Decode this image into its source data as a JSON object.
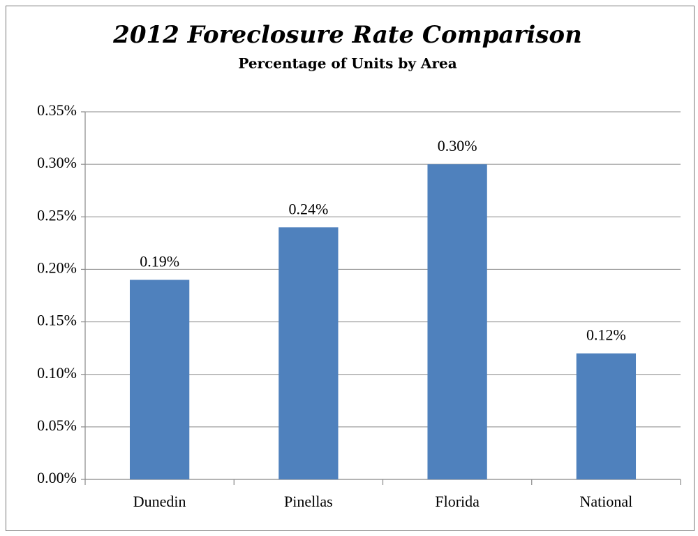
{
  "chart_data": {
    "type": "bar",
    "title": "2012 Foreclosure Rate Comparison",
    "subtitle": "Percentage of Units by Area",
    "categories": [
      "Dunedin",
      "Pinellas",
      "Florida",
      "National"
    ],
    "values": [
      0.19,
      0.24,
      0.3,
      0.12
    ],
    "value_labels": [
      "0.19%",
      "0.24%",
      "0.30%",
      "0.12%"
    ],
    "color": "#4f81bd",
    "ylim": [
      0,
      0.35
    ],
    "yticks": [
      {
        "value": 0,
        "label": "0.00%"
      },
      {
        "value": 0.05,
        "label": "0.05%"
      },
      {
        "value": 0.1,
        "label": "0.10%"
      },
      {
        "value": 0.15,
        "label": "0.15%"
      },
      {
        "value": 0.2,
        "label": "0.20%"
      },
      {
        "value": 0.25,
        "label": "0.25%"
      },
      {
        "value": 0.3,
        "label": "0.30%"
      },
      {
        "value": 0.35,
        "label": "0.35%"
      }
    ],
    "grid": true
  }
}
